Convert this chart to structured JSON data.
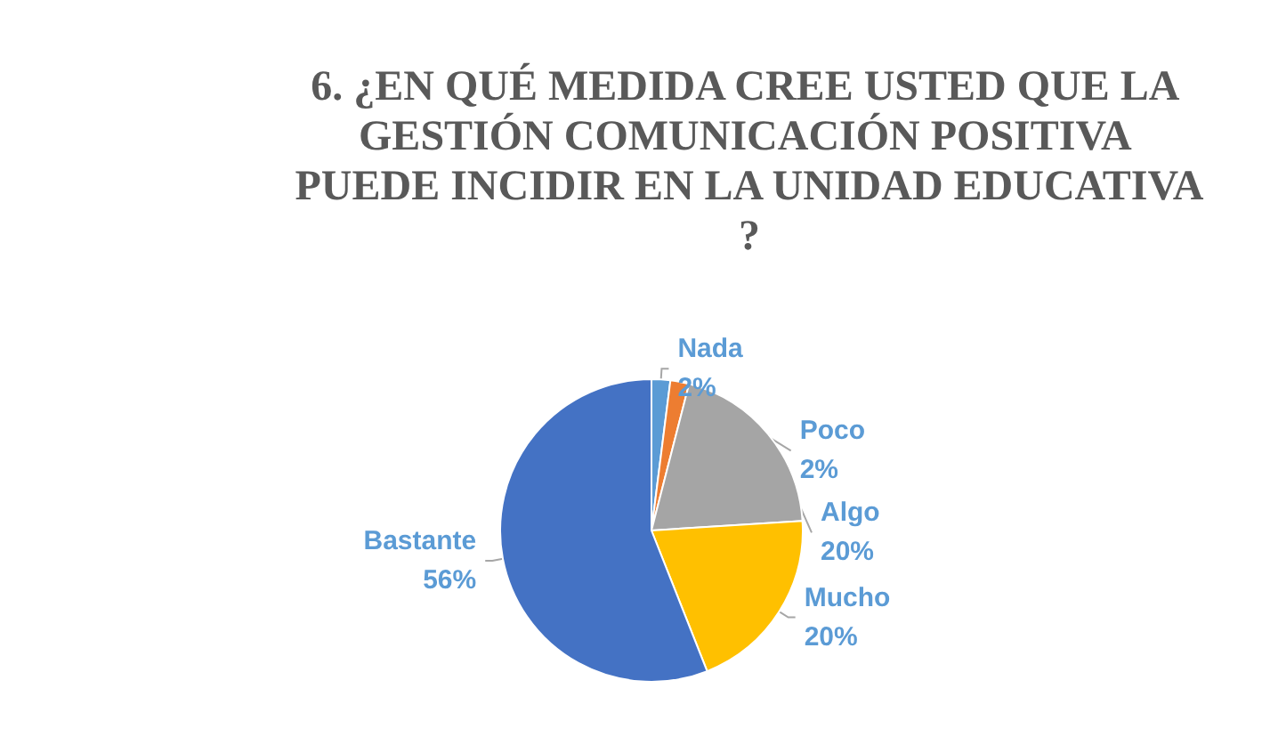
{
  "chart_data": {
    "type": "pie",
    "title": "6. ¿EN QUÉ MEDIDA CREE USTED QUE LA GESTIÓN COMUNICACIÓN POSITIVA PUEDE INCIDIR EN LA UNIDAD EDUCATIVA?",
    "categories": [
      "Nada",
      "Poco",
      "Algo",
      "Mucho",
      "Bastante"
    ],
    "values": [
      2,
      2,
      20,
      20,
      56
    ],
    "colors": [
      "#5b9bd5",
      "#ed7d31",
      "#a5a5a5",
      "#ffc000",
      "#4472c4"
    ],
    "value_labels": [
      "2%",
      "2%",
      "20%",
      "20%",
      "56%"
    ],
    "legend": false
  }
}
